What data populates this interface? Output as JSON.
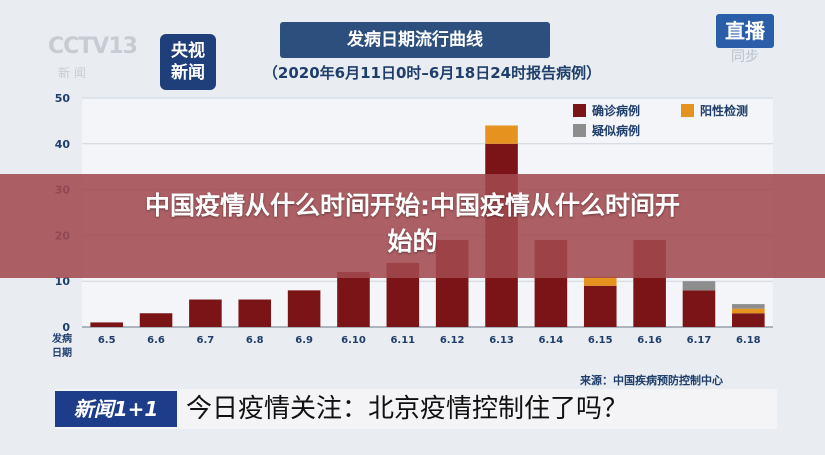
{
  "header": {
    "logo_text": "CCTV",
    "logo_channel": "13",
    "logo_sub": "新 闻",
    "yangshi_line1": "央视",
    "yangshi_line2": "新闻",
    "title": "发病日期流行曲线",
    "subtitle": "（2020年6月11日0时–6月18日24时报告病例）",
    "live_badge": "直播",
    "live_sub": "同步"
  },
  "banner": {
    "line1": "中国疫情从什么时间开始:中国疫情从什么时间开",
    "line2": "始的"
  },
  "footer": {
    "source": "来源：中国疾病预防控制中心",
    "ticker_tag": "新闻1+1",
    "ticker_text": "今日疫情关注：北京疫情控制住了吗？"
  },
  "chart_data": {
    "type": "bar",
    "stacked": true,
    "x_label_line1": "发病",
    "x_label_line2": "日期",
    "categories": [
      "6.5",
      "6.6",
      "6.7",
      "6.8",
      "6.9",
      "6.10",
      "6.11",
      "6.12",
      "6.13",
      "6.14",
      "6.15",
      "6.16",
      "6.17",
      "6.18"
    ],
    "ylim": [
      0,
      50
    ],
    "yticks": [
      0,
      10,
      20,
      30,
      40,
      50
    ],
    "grid": true,
    "legend_position": "top-right",
    "series": [
      {
        "name": "确诊病例",
        "color": "#7b1416",
        "values": [
          1,
          3,
          6,
          6,
          8,
          12,
          14,
          19,
          40,
          19,
          9,
          19,
          8,
          3
        ]
      },
      {
        "name": "阳性检测",
        "color": "#e6921e",
        "values": [
          0,
          0,
          0,
          0,
          0,
          0,
          0,
          0,
          4,
          0,
          2,
          0,
          0,
          1
        ]
      },
      {
        "name": "疑似病例",
        "color": "#8d8d8d",
        "values": [
          0,
          0,
          0,
          0,
          0,
          0,
          0,
          0,
          0,
          0,
          0,
          0,
          2,
          1
        ]
      }
    ]
  }
}
